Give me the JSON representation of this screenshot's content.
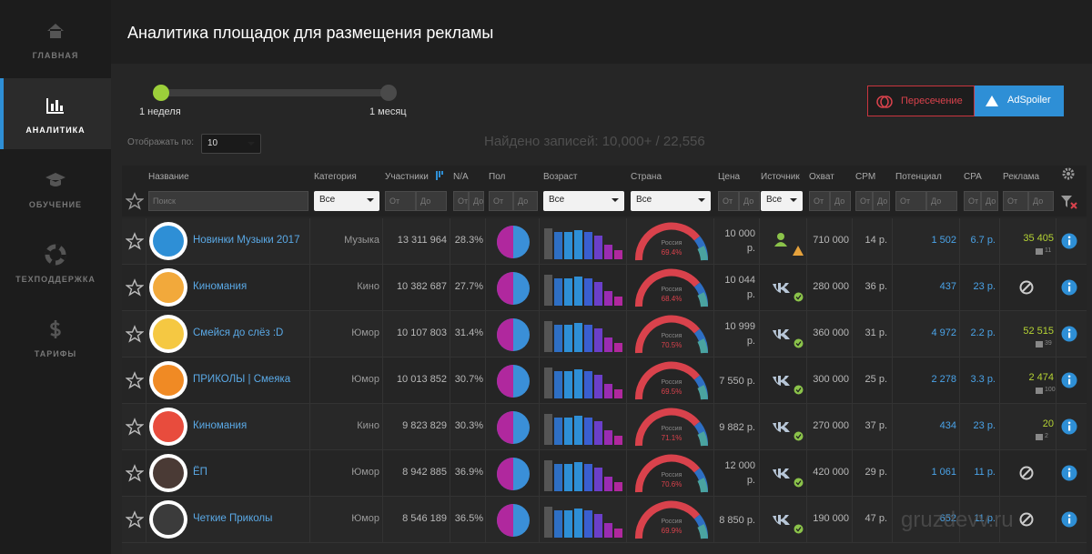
{
  "sidebar": {
    "items": [
      {
        "label": "ГЛАВНАЯ"
      },
      {
        "label": "АНАЛИТИКА"
      },
      {
        "label": "ОБУЧЕНИЕ"
      },
      {
        "label": "ТЕХПОДДЕРЖКА"
      },
      {
        "label": "ТАРИФЫ"
      }
    ],
    "active": 1
  },
  "header": {
    "title": "Аналитика площадок для размещения рекламы"
  },
  "period": {
    "start": "1 неделя",
    "end": "1 месяц"
  },
  "buttons": {
    "intersection": "Пересечение",
    "adspoiler": "AdSpoiler"
  },
  "page_size": {
    "label": "Отображать по:",
    "value": "10"
  },
  "found": "Найдено записей: 10,000+ / 22,556",
  "table": {
    "columns": [
      "Название",
      "Категория",
      "Участники",
      "N/A",
      "Пол",
      "Возраст",
      "Страна",
      "Цена",
      "Источник",
      "Охват",
      "CPM",
      "Потенциал",
      "CPA",
      "Реклама"
    ],
    "filters": {
      "search": "Поиск",
      "all": "Все",
      "from": "От",
      "to": "До"
    },
    "rows": [
      {
        "name": "Новинки Музыки 2017",
        "category": "Музыка",
        "members": "13 311 964",
        "er": "28.3%",
        "country": "Россия",
        "share": "69.4%",
        "price": "10 000 р.",
        "source": "user",
        "reach": "710 000",
        "cpm": "14 р.",
        "potential": "1 502",
        "cpa": "6.7 р.",
        "ads": "35 405",
        "ads_count": "11"
      },
      {
        "name": "Киномания",
        "category": "Кино",
        "members": "10 382 687",
        "er": "27.7%",
        "country": "Россия",
        "share": "68.4%",
        "price": "10 044 р.",
        "source": "vk",
        "reach": "280 000",
        "cpm": "36 р.",
        "potential": "437",
        "cpa": "23 р."
      },
      {
        "name": "Смейся до слёз :D",
        "category": "Юмор",
        "members": "10 107 803",
        "er": "31.4%",
        "country": "Россия",
        "share": "70.5%",
        "price": "10 999 р.",
        "source": "vk",
        "reach": "360 000",
        "cpm": "31 р.",
        "potential": "4 972",
        "cpa": "2.2 р.",
        "ads": "52 515",
        "ads_count": "39"
      },
      {
        "name": "ПРИКОЛЫ | Смеяка",
        "category": "Юмор",
        "members": "10 013 852",
        "er": "30.7%",
        "country": "Россия",
        "share": "69.5%",
        "price": "7 550 р.",
        "source": "vk",
        "reach": "300 000",
        "cpm": "25 р.",
        "potential": "2 278",
        "cpa": "3.3 р.",
        "ads": "2 474",
        "ads_count": "100"
      },
      {
        "name": "Киномания",
        "category": "Кино",
        "members": "9 823 829",
        "er": "30.3%",
        "country": "Россия",
        "share": "71.1%",
        "price": "9 882 р.",
        "source": "vk",
        "reach": "270 000",
        "cpm": "37 р.",
        "potential": "434",
        "cpa": "23 р.",
        "ads": "20",
        "ads_count": "2"
      },
      {
        "name": "ЁП",
        "category": "Юмор",
        "members": "8 942 885",
        "er": "36.9%",
        "country": "Россия",
        "share": "70.6%",
        "price": "12 000 р.",
        "source": "vk",
        "reach": "420 000",
        "cpm": "29 р.",
        "potential": "1 061",
        "cpa": "11 р."
      },
      {
        "name": "Четкие Приколы",
        "category": "Юмор",
        "members": "8 546 189",
        "er": "36.5%",
        "country": "Россия",
        "share": "69.9%",
        "price": "8 850 р.",
        "source": "vk",
        "reach": "190 000",
        "cpm": "47 р.",
        "potential": "652",
        "cpa": "11 р."
      }
    ]
  },
  "watermark": "gruzdevv.ru"
}
